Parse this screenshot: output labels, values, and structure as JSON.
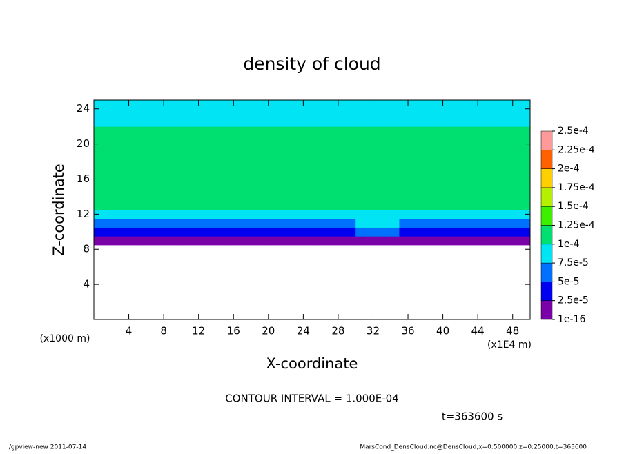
{
  "chart_data": {
    "type": "heatmap",
    "title": "density of cloud",
    "x_label": "X-coordinate",
    "y_label": "Z-coordinate",
    "x_unit": "(x1E4 m)",
    "y_unit": "(x1000 m)",
    "xlim": [
      0,
      50
    ],
    "ylim": [
      0,
      25
    ],
    "xticks": [
      4,
      8,
      12,
      16,
      20,
      24,
      28,
      32,
      36,
      40,
      44,
      48
    ],
    "yticks": [
      4,
      8,
      12,
      16,
      20,
      24
    ],
    "x_edges": [
      0,
      5,
      10,
      15,
      20,
      25,
      30,
      35,
      40,
      45,
      50
    ],
    "z_edges": [
      8.5,
      9.5,
      10.5,
      11.5,
      12.5,
      16,
      20,
      22,
      25
    ],
    "values": [
      [
        1e-05,
        1e-05,
        1e-05,
        1e-05,
        1e-05,
        1e-05,
        1e-05,
        1e-05,
        1e-05,
        1e-05
      ],
      [
        3.5e-05,
        3.5e-05,
        3.5e-05,
        3.5e-05,
        3.5e-05,
        3.5e-05,
        6e-05,
        3.5e-05,
        3.5e-05,
        3.5e-05
      ],
      [
        6e-05,
        6e-05,
        6e-05,
        6e-05,
        6e-05,
        6e-05,
        8e-05,
        6e-05,
        6e-05,
        6e-05
      ],
      [
        9e-05,
        9e-05,
        9e-05,
        9e-05,
        9e-05,
        9e-05,
        9e-05,
        9e-05,
        9e-05,
        9e-05
      ],
      [
        0.00011,
        0.00011,
        0.00011,
        0.00011,
        0.00011,
        0.00011,
        0.00011,
        0.00011,
        0.00011,
        0.00011
      ],
      [
        0.00011,
        0.000115,
        0.000115,
        0.000115,
        0.000115,
        0.000115,
        0.000115,
        0.000115,
        0.000115,
        0.00011
      ],
      [
        0.00011,
        0.00011,
        0.00011,
        0.00011,
        0.00011,
        0.00011,
        0.00011,
        0.00011,
        0.00011,
        0.00011
      ],
      [
        8e-05,
        8e-05,
        8e-05,
        8e-05,
        8e-05,
        8e-05,
        8e-05,
        8e-05,
        8e-05,
        8e-05
      ]
    ],
    "colorbar_levels": [
      {
        "value": 1e-16,
        "label": "1e-16"
      },
      {
        "value": 2.5e-05,
        "label": "2.5e-5"
      },
      {
        "value": 5e-05,
        "label": "5e-5"
      },
      {
        "value": 7.5e-05,
        "label": "7.5e-5"
      },
      {
        "value": 0.0001,
        "label": "1e-4"
      },
      {
        "value": 0.000125,
        "label": "1.25e-4"
      },
      {
        "value": 0.00015,
        "label": "1.5e-4"
      },
      {
        "value": 0.000175,
        "label": "1.75e-4"
      },
      {
        "value": 0.0002,
        "label": "2e-4"
      },
      {
        "value": 0.000225,
        "label": "2.25e-4"
      },
      {
        "value": 0.00025,
        "label": "2.5e-4"
      }
    ],
    "colorbar_colors": [
      "#7a00a8",
      "#0000f0",
      "#0070ff",
      "#00e4f4",
      "#00e070",
      "#3cf000",
      "#b4f000",
      "#ffd000",
      "#ff6000",
      "#ff9a9a"
    ],
    "contour_interval": "CONTOUR INTERVAL = 1.000E-04",
    "time": "t=363600 s",
    "footer_left": "./gpview-new  2011-07-14",
    "footer_right": "MarsCond_DensCloud.nc@DensCloud,x=0:500000,z=0:25000,t=363600"
  }
}
